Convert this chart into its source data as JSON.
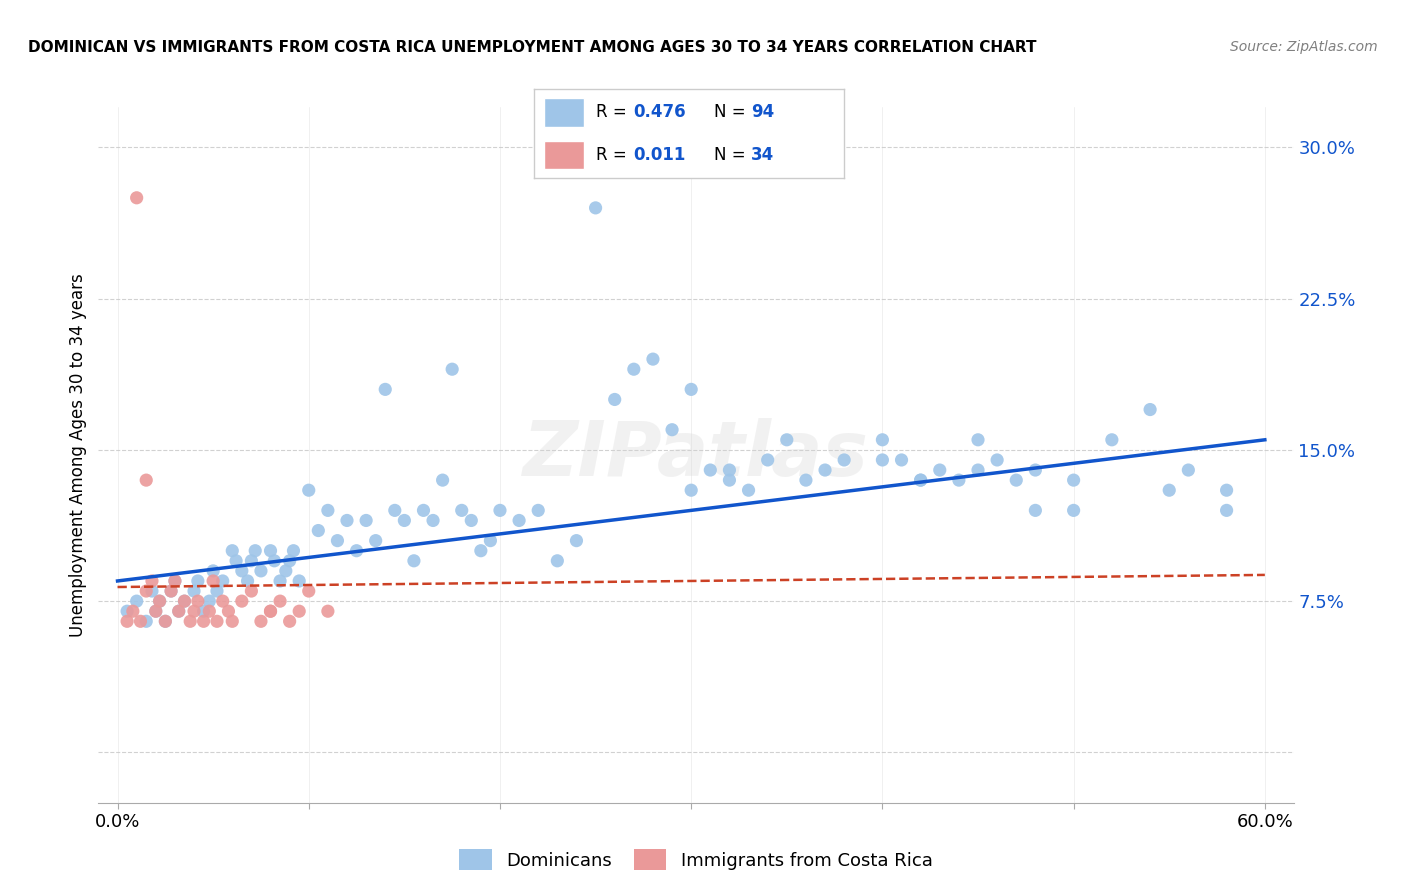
{
  "title": "DOMINICAN VS IMMIGRANTS FROM COSTA RICA UNEMPLOYMENT AMONG AGES 30 TO 34 YEARS CORRELATION CHART",
  "source": "Source: ZipAtlas.com",
  "ylabel": "Unemployment Among Ages 30 to 34 years",
  "xlim": [
    -0.01,
    0.615
  ],
  "ylim": [
    -0.025,
    0.32
  ],
  "yticks": [
    0.0,
    0.075,
    0.15,
    0.225,
    0.3
  ],
  "ytick_labels": [
    "",
    "7.5%",
    "15.0%",
    "22.5%",
    "30.0%"
  ],
  "xticks": [
    0.0,
    0.1,
    0.2,
    0.3,
    0.4,
    0.5,
    0.6
  ],
  "xtick_labels": [
    "0.0%",
    "",
    "",
    "",
    "",
    "",
    "60.0%"
  ],
  "blue_color": "#9fc5e8",
  "pink_color": "#ea9999",
  "blue_line_color": "#1155cc",
  "pink_line_color": "#cc4125",
  "R_blue": 0.476,
  "N_blue": 94,
  "R_pink": 0.011,
  "N_pink": 34,
  "watermark": "ZIPatlas",
  "bg_color": "#ffffff",
  "grid_color": "#cccccc",
  "blue_x": [
    0.005,
    0.01,
    0.015,
    0.018,
    0.02,
    0.022,
    0.025,
    0.028,
    0.03,
    0.032,
    0.035,
    0.04,
    0.042,
    0.045,
    0.048,
    0.05,
    0.052,
    0.055,
    0.06,
    0.062,
    0.065,
    0.068,
    0.07,
    0.072,
    0.075,
    0.08,
    0.082,
    0.085,
    0.088,
    0.09,
    0.092,
    0.095,
    0.1,
    0.105,
    0.11,
    0.115,
    0.12,
    0.125,
    0.13,
    0.135,
    0.14,
    0.145,
    0.15,
    0.155,
    0.16,
    0.165,
    0.17,
    0.175,
    0.18,
    0.185,
    0.19,
    0.195,
    0.2,
    0.21,
    0.22,
    0.23,
    0.24,
    0.25,
    0.26,
    0.27,
    0.28,
    0.29,
    0.3,
    0.31,
    0.32,
    0.33,
    0.35,
    0.37,
    0.38,
    0.4,
    0.41,
    0.42,
    0.43,
    0.44,
    0.45,
    0.46,
    0.47,
    0.48,
    0.5,
    0.52,
    0.54,
    0.56,
    0.58,
    0.3,
    0.32,
    0.34,
    0.36,
    0.4,
    0.42,
    0.45,
    0.48,
    0.5,
    0.55,
    0.58
  ],
  "blue_y": [
    0.07,
    0.075,
    0.065,
    0.08,
    0.07,
    0.075,
    0.065,
    0.08,
    0.085,
    0.07,
    0.075,
    0.08,
    0.085,
    0.07,
    0.075,
    0.09,
    0.08,
    0.085,
    0.1,
    0.095,
    0.09,
    0.085,
    0.095,
    0.1,
    0.09,
    0.1,
    0.095,
    0.085,
    0.09,
    0.095,
    0.1,
    0.085,
    0.13,
    0.11,
    0.12,
    0.105,
    0.115,
    0.1,
    0.115,
    0.105,
    0.18,
    0.12,
    0.115,
    0.095,
    0.12,
    0.115,
    0.135,
    0.19,
    0.12,
    0.115,
    0.1,
    0.105,
    0.12,
    0.115,
    0.12,
    0.095,
    0.105,
    0.27,
    0.175,
    0.19,
    0.195,
    0.16,
    0.18,
    0.14,
    0.135,
    0.13,
    0.155,
    0.14,
    0.145,
    0.155,
    0.145,
    0.135,
    0.14,
    0.135,
    0.155,
    0.145,
    0.135,
    0.14,
    0.135,
    0.155,
    0.17,
    0.14,
    0.13,
    0.13,
    0.14,
    0.145,
    0.135,
    0.145,
    0.135,
    0.14,
    0.12,
    0.12,
    0.13,
    0.12
  ],
  "pink_x": [
    0.005,
    0.008,
    0.01,
    0.012,
    0.015,
    0.018,
    0.02,
    0.022,
    0.025,
    0.028,
    0.03,
    0.032,
    0.035,
    0.038,
    0.04,
    0.042,
    0.045,
    0.048,
    0.05,
    0.052,
    0.055,
    0.058,
    0.06,
    0.065,
    0.07,
    0.075,
    0.08,
    0.085,
    0.09,
    0.095,
    0.1,
    0.11,
    0.015,
    0.08
  ],
  "pink_y": [
    0.065,
    0.07,
    0.275,
    0.065,
    0.08,
    0.085,
    0.07,
    0.075,
    0.065,
    0.08,
    0.085,
    0.07,
    0.075,
    0.065,
    0.07,
    0.075,
    0.065,
    0.07,
    0.085,
    0.065,
    0.075,
    0.07,
    0.065,
    0.075,
    0.08,
    0.065,
    0.07,
    0.075,
    0.065,
    0.07,
    0.08,
    0.07,
    0.135,
    0.07
  ],
  "blue_trend_x0": 0.0,
  "blue_trend_x1": 0.6,
  "blue_trend_y0": 0.085,
  "blue_trend_y1": 0.155,
  "pink_trend_x0": 0.0,
  "pink_trend_x1": 0.6,
  "pink_trend_y0": 0.082,
  "pink_trend_y1": 0.088
}
